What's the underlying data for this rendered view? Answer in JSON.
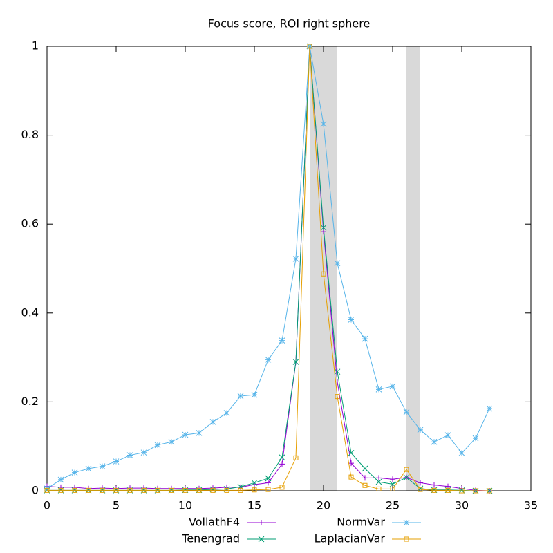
{
  "chart_data": {
    "type": "line",
    "title": "Focus score, ROI right sphere",
    "x": [
      0,
      1,
      2,
      3,
      4,
      5,
      6,
      7,
      8,
      9,
      10,
      11,
      12,
      13,
      14,
      15,
      16,
      17,
      18,
      19,
      20,
      21,
      22,
      23,
      24,
      25,
      26,
      27,
      28,
      29,
      30,
      31,
      32
    ],
    "series": [
      {
        "name": "VollathF4",
        "color": "#9400d3",
        "marker": "plus",
        "values": [
          0.01,
          0.008,
          0.008,
          0.005,
          0.006,
          0.005,
          0.006,
          0.006,
          0.005,
          0.005,
          0.005,
          0.005,
          0.006,
          0.008,
          0.008,
          0.014,
          0.018,
          0.06,
          0.29,
          1,
          0.583,
          0.245,
          0.062,
          0.029,
          0.029,
          0.026,
          0.03,
          0.018,
          0.013,
          0.01,
          0.005,
          0.001,
          0
        ]
      },
      {
        "name": "Tenengrad",
        "color": "#009e73",
        "marker": "cross",
        "values": [
          0.001,
          0.001,
          0.001,
          0.001,
          0.001,
          0.001,
          0.001,
          0.001,
          0.001,
          0.001,
          0.002,
          0.002,
          0.003,
          0.004,
          0.009,
          0.018,
          0.028,
          0.075,
          0.29,
          1,
          0.592,
          0.268,
          0.085,
          0.05,
          0.02,
          0.015,
          0.03,
          0.005,
          0.002,
          0.002,
          0.001,
          0,
          0
        ]
      },
      {
        "name": "NormVar",
        "color": "#56b4e9",
        "marker": "star",
        "values": [
          0.005,
          0.025,
          0.041,
          0.05,
          0.055,
          0.066,
          0.08,
          0.086,
          0.103,
          0.11,
          0.126,
          0.13,
          0.155,
          0.175,
          0.213,
          0.216,
          0.295,
          0.338,
          0.522,
          1,
          0.825,
          0.512,
          0.385,
          0.342,
          0.228,
          0.235,
          0.177,
          0.137,
          0.11,
          0.125,
          0.085,
          0.118,
          0.185
        ]
      },
      {
        "name": "LaplacianVar",
        "color": "#e69f00",
        "marker": "square",
        "values": [
          0.001,
          0.001,
          0.001,
          0.001,
          0.001,
          0.001,
          0.001,
          0.001,
          0.001,
          0.001,
          0.001,
          0.001,
          0.001,
          0.001,
          0.001,
          0.002,
          0.003,
          0.008,
          0.074,
          1,
          0.488,
          0.212,
          0.031,
          0.012,
          0.004,
          0.004,
          0.048,
          0.003,
          0.001,
          0.001,
          0,
          0,
          0
        ]
      }
    ],
    "shaded_regions": [
      [
        19,
        21
      ],
      [
        26,
        27
      ]
    ],
    "shade_color": "#d9d9d9",
    "xlim": [
      0,
      35
    ],
    "xticks": [
      0,
      5,
      10,
      15,
      20,
      25,
      30,
      35
    ],
    "ylim": [
      0,
      1
    ],
    "yticks": [
      0,
      0.2,
      0.4,
      0.6,
      0.8,
      1
    ],
    "grid": false,
    "legend": "bottom"
  }
}
